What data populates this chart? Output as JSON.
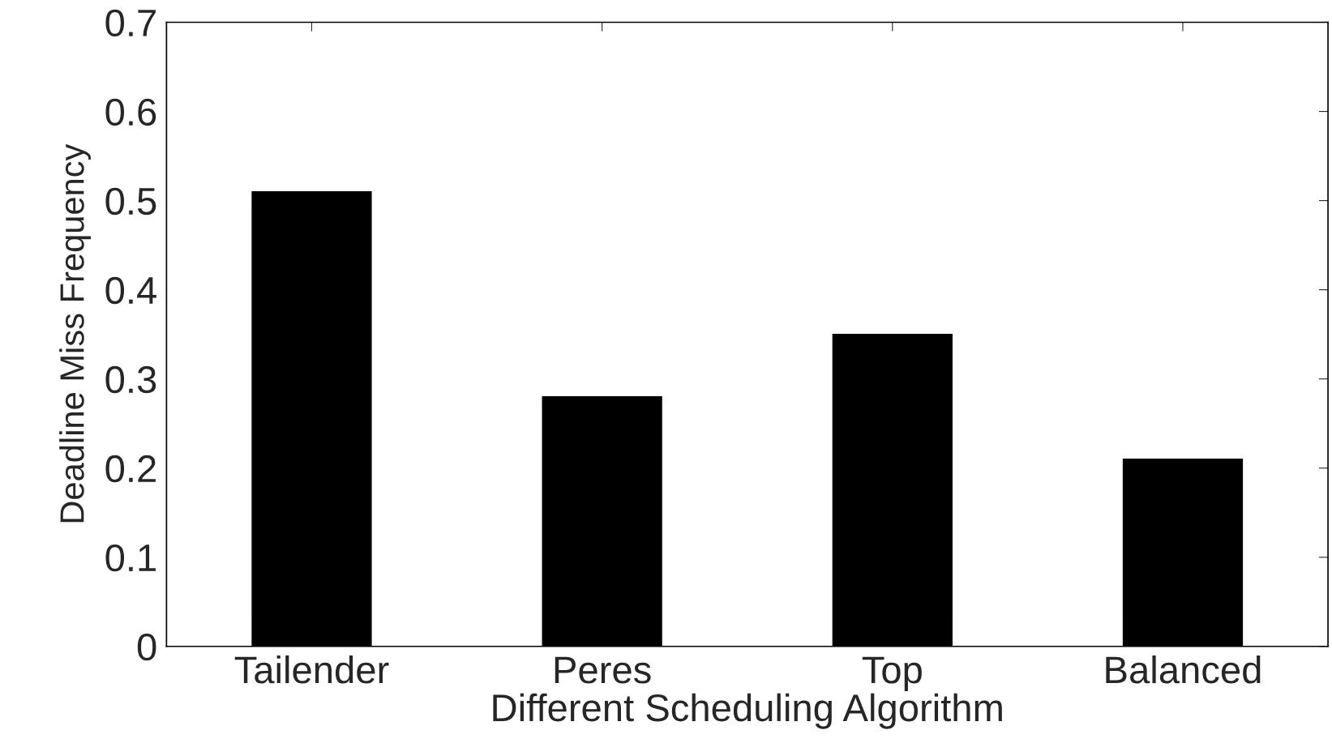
{
  "chart_data": {
    "type": "bar",
    "xlabel": "Different Scheduling Algorithm",
    "ylabel": "Deadline Miss Frequency",
    "categories": [
      "Tailender",
      "Peres",
      "Top",
      "Balanced"
    ],
    "values": [
      0.51,
      0.28,
      0.35,
      0.21
    ],
    "color": "#000000",
    "ylim": [
      0,
      0.7
    ],
    "yticks": [
      0,
      0.1,
      0.2,
      0.3,
      0.4,
      0.5,
      0.6,
      0.7
    ],
    "grid": false,
    "legend": false
  }
}
